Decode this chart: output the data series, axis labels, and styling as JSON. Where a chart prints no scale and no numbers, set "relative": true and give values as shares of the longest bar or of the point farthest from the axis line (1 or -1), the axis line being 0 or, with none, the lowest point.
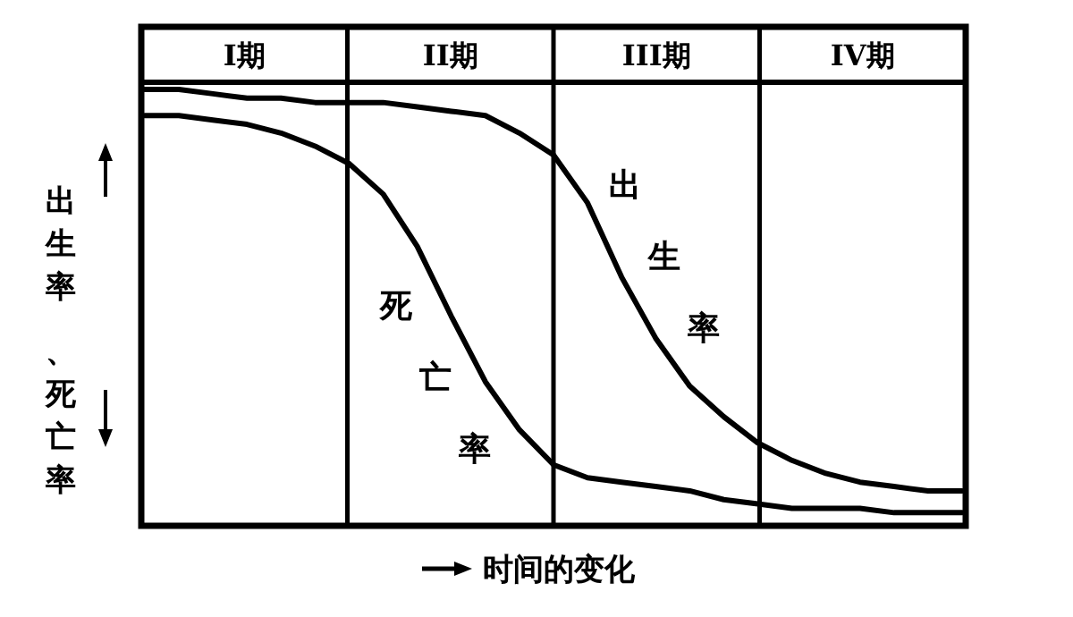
{
  "chart_data": {
    "type": "line",
    "relative": true,
    "xlabel": "时间的变化",
    "ylabel": "出生率、死亡率",
    "annotations": [
      "I期",
      "II期",
      "III期",
      "IV期"
    ],
    "categories": [
      null,
      null,
      null,
      null,
      null,
      null,
      null,
      null,
      null,
      null,
      null,
      null,
      null,
      null,
      null,
      null,
      null,
      null,
      null,
      null,
      null,
      null,
      null,
      null,
      null
    ],
    "series": [
      {
        "name": "出生率",
        "color": "#000000",
        "values": [
          1,
          1,
          0.99,
          0.98,
          0.98,
          0.97,
          0.97,
          0.97,
          0.96,
          0.95,
          0.94,
          0.9,
          0.85,
          0.74,
          0.57,
          0.43,
          0.32,
          0.25,
          0.19,
          0.15,
          0.12,
          0.1,
          0.09,
          0.08,
          0.08
        ]
      },
      {
        "name": "死亡率",
        "color": "#000000",
        "values": [
          0.94,
          0.94,
          0.93,
          0.92,
          0.9,
          0.87,
          0.83,
          0.76,
          0.64,
          0.48,
          0.33,
          0.22,
          0.14,
          0.11,
          0.1,
          0.09,
          0.08,
          0.06,
          0.05,
          0.04,
          0.04,
          0.04,
          0.03,
          0.03,
          0.03
        ]
      }
    ],
    "grid": "x",
    "marker": "none",
    "line_style": "solid"
  }
}
